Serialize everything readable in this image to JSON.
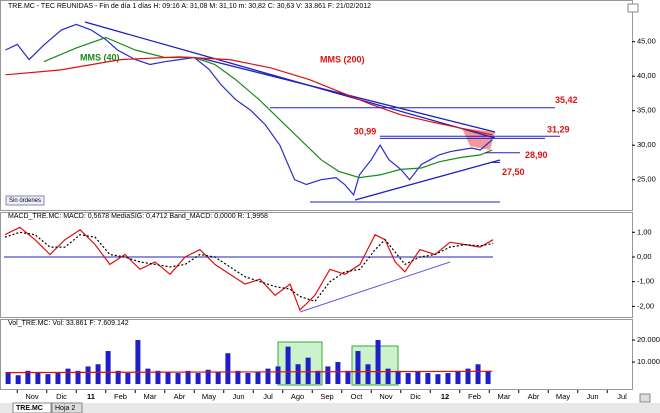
{
  "chart_data": [
    {
      "type": "line",
      "title": "TRE.MC - TEC REUNIDAS - Fin de día 1 días H: 09:16 A: 31,08 M: 31,10 m: 30,82 C: 30,63 V: 33.861 F: 21/02/2012",
      "ylim": [
        20.9,
        49.3
      ],
      "yticks": [
        {
          "value": 25,
          "label": "25,00"
        },
        {
          "value": 30,
          "label": "30,00"
        },
        {
          "value": 35,
          "label": "35,00"
        },
        {
          "value": 40,
          "label": "40,00"
        },
        {
          "value": 45,
          "label": "45,00"
        }
      ],
      "series": [
        {
          "color": "#2a2ad0",
          "x": [
            -0.9,
            -0.5,
            -0.1,
            0.4,
            1,
            1.5,
            2,
            2.5,
            2.9,
            3.5,
            4,
            4.5,
            5,
            5.5,
            6,
            6.4,
            6.9,
            7.4,
            7.9,
            8.4,
            8.9,
            9.3,
            9.8,
            10.3,
            10.6,
            10.9,
            11.1,
            11.5,
            11.8,
            12.1,
            12.5,
            12.8,
            13.2,
            13.5,
            13.8,
            14.2,
            14.5,
            14.9,
            15.2,
            15.6
          ],
          "values": [
            43.8,
            44.6,
            42.4,
            44.5,
            46.7,
            47.5,
            46.7,
            45.3,
            43.8,
            42.4,
            41.7,
            42.1,
            42.4,
            42.7,
            41,
            38.8,
            36.6,
            35.1,
            33,
            30,
            25,
            24.3,
            25,
            25.3,
            24.3,
            22.8,
            25.7,
            27.9,
            30,
            27.9,
            26.5,
            25,
            27.2,
            27.9,
            28.6,
            29.1,
            29.3,
            29.6,
            29.3,
            30.8
          ]
        },
        {
          "name": "MMS (40)",
          "color": "#1a8a1a",
          "x": [
            0.4,
            1.5,
            2.5,
            3.5,
            4.5,
            5.5,
            6.2,
            6.9,
            7.7,
            8.4,
            9.1,
            9.8,
            10.4,
            11.1,
            11.8,
            12.5,
            13.2,
            13.8,
            14.5,
            15.2,
            15.6
          ],
          "values": [
            42.1,
            44.1,
            45.6,
            43.8,
            42.7,
            42.7,
            41.7,
            39.5,
            36.6,
            33.7,
            30.8,
            27.9,
            26.2,
            25.3,
            25.7,
            26.5,
            26.7,
            27.6,
            28.2,
            28.6,
            29.3
          ]
        },
        {
          "name": "MMS (200)",
          "color": "#e01010",
          "x": [
            -0.9,
            0.95,
            3,
            5,
            6.7,
            8.1,
            9.4,
            10.4,
            11.5,
            12.5,
            13.5,
            14.5,
            15.6
          ],
          "values": [
            40.2,
            40.9,
            42.4,
            42.8,
            42.4,
            41.2,
            39.5,
            37.8,
            35.9,
            34.4,
            33.4,
            32.5,
            31.5
          ]
        }
      ],
      "levels": [
        {
          "value": 35.42,
          "label": "35,42"
        },
        {
          "value": 31.29,
          "label": "31,29"
        },
        {
          "value": 30.99,
          "label": "30,99"
        },
        {
          "value": 28.9,
          "label": "28,90"
        },
        {
          "value": 27.5,
          "label": "27,50"
        }
      ],
      "note": "Sin órdenes"
    },
    {
      "type": "line",
      "title": "MACD_TRE.MC: MACD: 0,5678 MediaSIG: 0,4712 Band_MACD: 0,0000 R: 1,9958",
      "ylim": [
        -2.39,
        1.74
      ],
      "yticks": [
        {
          "value": -2,
          "label": "-2,00"
        },
        {
          "value": -1,
          "label": "-1,00"
        },
        {
          "value": 0,
          "label": "0,00"
        },
        {
          "value": 1,
          "label": "1,00"
        }
      ],
      "series": [
        {
          "color": "#e01010",
          "x": [
            -0.92,
            -0.41,
            0.1,
            0.61,
            1.12,
            1.63,
            2.14,
            2.64,
            3.15,
            3.66,
            4.17,
            4.68,
            5.19,
            5.69,
            6.2,
            6.71,
            7.22,
            7.73,
            8.24,
            8.75,
            9.08,
            9.59,
            10.1,
            10.61,
            11.12,
            11.63,
            11.97,
            12.31,
            12.64,
            13.15,
            13.66,
            14.17,
            14.68,
            15.19,
            15.63
          ],
          "values": [
            0.9,
            1.2,
            0.7,
            0.1,
            0.7,
            1.1,
            0.5,
            -0.3,
            0.1,
            -0.5,
            -0.2,
            -0.7,
            0,
            0.3,
            -0.3,
            -0.7,
            -1.1,
            -0.9,
            -1.55,
            -1.1,
            -2.15,
            -1.55,
            -0.5,
            -0.7,
            -0.3,
            0.9,
            0.7,
            -0.2,
            -0.6,
            0.3,
            0.1,
            0.6,
            0.5,
            0.4,
            0.7
          ]
        },
        {
          "color": "#000000",
          "dashed": true,
          "x": [
            -0.92,
            -0.41,
            0.1,
            0.61,
            1.12,
            1.63,
            2.14,
            2.64,
            3.15,
            3.66,
            4.17,
            4.68,
            5.19,
            5.69,
            6.2,
            6.71,
            7.22,
            7.73,
            8.24,
            8.75,
            9.08,
            9.59,
            10.1,
            10.61,
            11.12,
            11.63,
            11.97,
            12.31,
            12.64,
            13.15,
            13.66,
            14.17,
            14.68,
            15.19,
            15.63
          ],
          "values": [
            0.8,
            1.0,
            0.9,
            0.4,
            0.4,
            0.9,
            0.8,
            0.1,
            0.0,
            -0.2,
            -0.3,
            -0.4,
            -0.3,
            0.1,
            0.0,
            -0.4,
            -0.8,
            -1.0,
            -1.2,
            -1.3,
            -1.6,
            -1.8,
            -1.0,
            -0.6,
            -0.5,
            0.3,
            0.7,
            0.2,
            -0.3,
            0.0,
            0.1,
            0.4,
            0.5,
            0.45,
            0.55
          ]
        }
      ]
    },
    {
      "type": "bar",
      "title": "Vol_TRE.MC: Vol: 33.861 F: 7.609.142",
      "ylim": [
        -1800,
        28200
      ],
      "yticks": [
        {
          "value": 10000,
          "label": "10.000"
        },
        {
          "value": 20000,
          "label": "20.000"
        }
      ],
      "color": "#1f1fc8",
      "x": [
        -0.81,
        -0.47,
        -0.14,
        0.2,
        0.54,
        0.88,
        1.22,
        1.56,
        1.9,
        2.24,
        2.58,
        2.92,
        3.25,
        3.59,
        3.93,
        4.27,
        4.61,
        4.95,
        5.29,
        5.63,
        5.97,
        6.31,
        6.64,
        6.98,
        7.32,
        7.66,
        8.0,
        8.34,
        8.68,
        9.02,
        9.36,
        9.69,
        10.03,
        10.37,
        10.71,
        11.05,
        11.39,
        11.73,
        12.07,
        12.41,
        12.75,
        13.08,
        13.42,
        13.76,
        14.1,
        14.44,
        14.78,
        15.12,
        15.46
      ],
      "values": [
        5000,
        4000,
        6000,
        5500,
        4500,
        5000,
        7000,
        6000,
        8000,
        9000,
        15000,
        6000,
        5000,
        20000,
        7000,
        6000,
        5500,
        5000,
        6000,
        5000,
        6500,
        5500,
        14000,
        6000,
        5000,
        5500,
        7000,
        8000,
        17000,
        9000,
        12000,
        6000,
        8000,
        10000,
        6000,
        15000,
        9000,
        20000,
        7000,
        6000,
        5000,
        5500,
        5000,
        4500,
        5000,
        6000,
        7000,
        9000,
        6000
      ],
      "average": {
        "color": "#e01010",
        "x": [
          -0.9,
          15.6
        ],
        "values": [
          5200,
          5800
        ]
      }
    }
  ],
  "x_axis_labels": [
    "Nov",
    "Dic",
    "11",
    "Feb",
    "Mar",
    "Abr",
    "May",
    "Jun",
    "Jul",
    "Ago",
    "Sep",
    "Oct",
    "Nov",
    "Dic",
    "12",
    "Feb",
    "Mar",
    "Abr",
    "May",
    "Jun",
    "Jul"
  ],
  "tabs": [
    "TRE.MC",
    "Hoja 2"
  ]
}
